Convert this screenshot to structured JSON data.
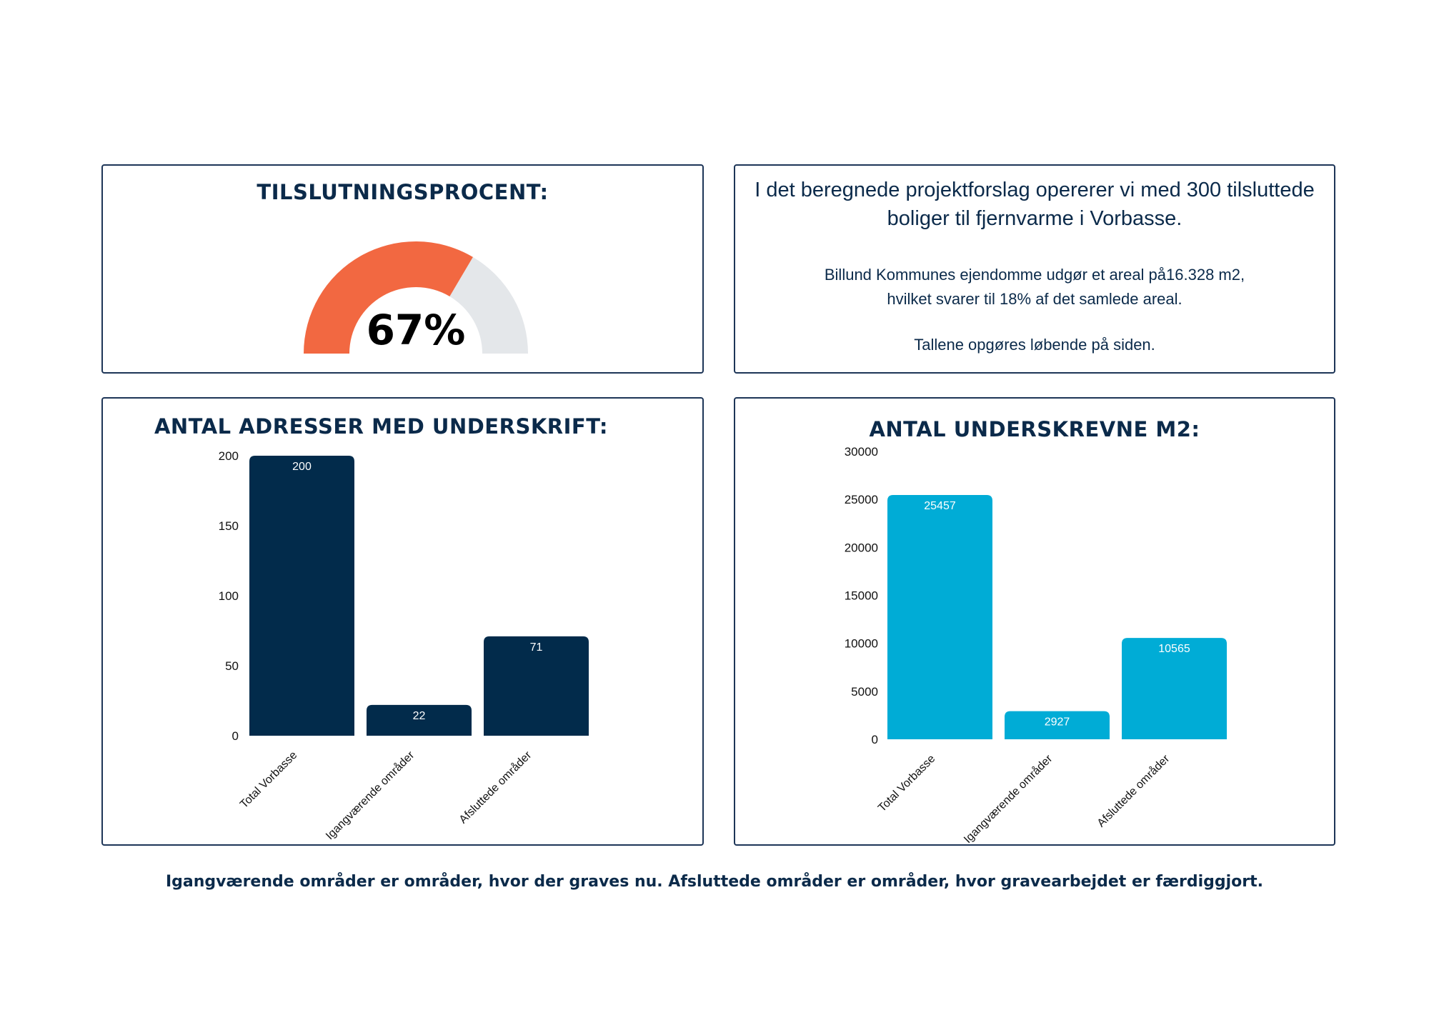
{
  "gauge": {
    "title": "TILSLUTNINGSPROCENT:",
    "value_label": "67%",
    "value": 0.67,
    "fill_color": "#f26841",
    "track_color": "#e4e7ea"
  },
  "info": {
    "main": "I det beregnede projektforslag opererer vi med 300 tilsluttede boliger til fjernvarme i Vorbasse.",
    "line2": "Billund Kommunes ejendomme udgør et areal på16.328 m2,",
    "line3": "hvilket svarer til 18% af det samlede areal.",
    "line4": "Tallene opgøres løbende på siden."
  },
  "chart_data": [
    {
      "type": "bar",
      "title": "ANTAL ADRESSER MED UNDERSKRIFT:",
      "categories": [
        "Total Vorbasse",
        "Igangværende områder",
        "Afsluttede områder"
      ],
      "values": [
        200,
        22,
        71
      ],
      "value_labels": [
        "200",
        "22",
        "71"
      ],
      "yticks": [
        "0",
        "50",
        "100",
        "150",
        "200"
      ],
      "ylim": [
        0,
        200
      ],
      "color": "#022b4b",
      "grid": false,
      "legend": "none"
    },
    {
      "type": "bar",
      "title": "ANTAL UNDERSKREVNE M2:",
      "categories": [
        "Total Vorbasse",
        "Igangværende områder",
        "Afsluttede områder"
      ],
      "values": [
        25457,
        2927,
        10565
      ],
      "value_labels": [
        "25457",
        "2927",
        "10565"
      ],
      "yticks": [
        "0",
        "5000",
        "10000",
        "15000",
        "20000",
        "25000",
        "30000"
      ],
      "ylim": [
        0,
        30000
      ],
      "color": "#00acd6",
      "grid": false,
      "legend": "none"
    }
  ],
  "footnote": "Igangværende områder er områder, hvor der graves nu. Afsluttede områder er områder, hvor gravearbejdet er færdiggjort."
}
